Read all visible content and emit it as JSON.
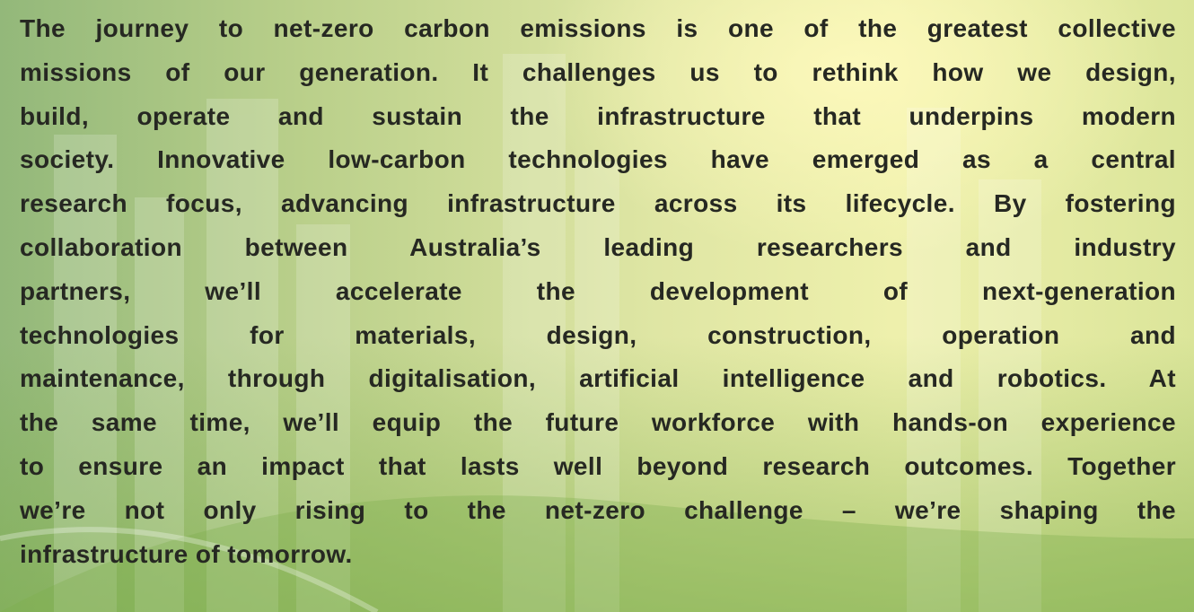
{
  "paragraph": {
    "lines": [
      "The journey to net-zero carbon emissions is one of the greatest collective",
      "missions of our generation. It challenges us to rethink how we design,",
      "build, operate and sustain the infrastructure that underpins modern",
      "society. Innovative low-carbon technologies have emerged as a central",
      "research focus, advancing infrastructure across its lifecycle. By fostering",
      "collaboration between Australia’s leading researchers and industry",
      "partners, we’ll accelerate the development of next-generation",
      "technologies for materials, design, construction, operation and",
      "maintenance, through digitalisation, artificial intelligence and robotics. At",
      "the same time, we’ll equip the future workforce with hands-on experience",
      "to ensure an impact that lasts well beyond research outcomes. Together",
      "we’re not only rising to the net-zero challenge – we’re shaping the",
      "infrastructure of tomorrow."
    ]
  }
}
